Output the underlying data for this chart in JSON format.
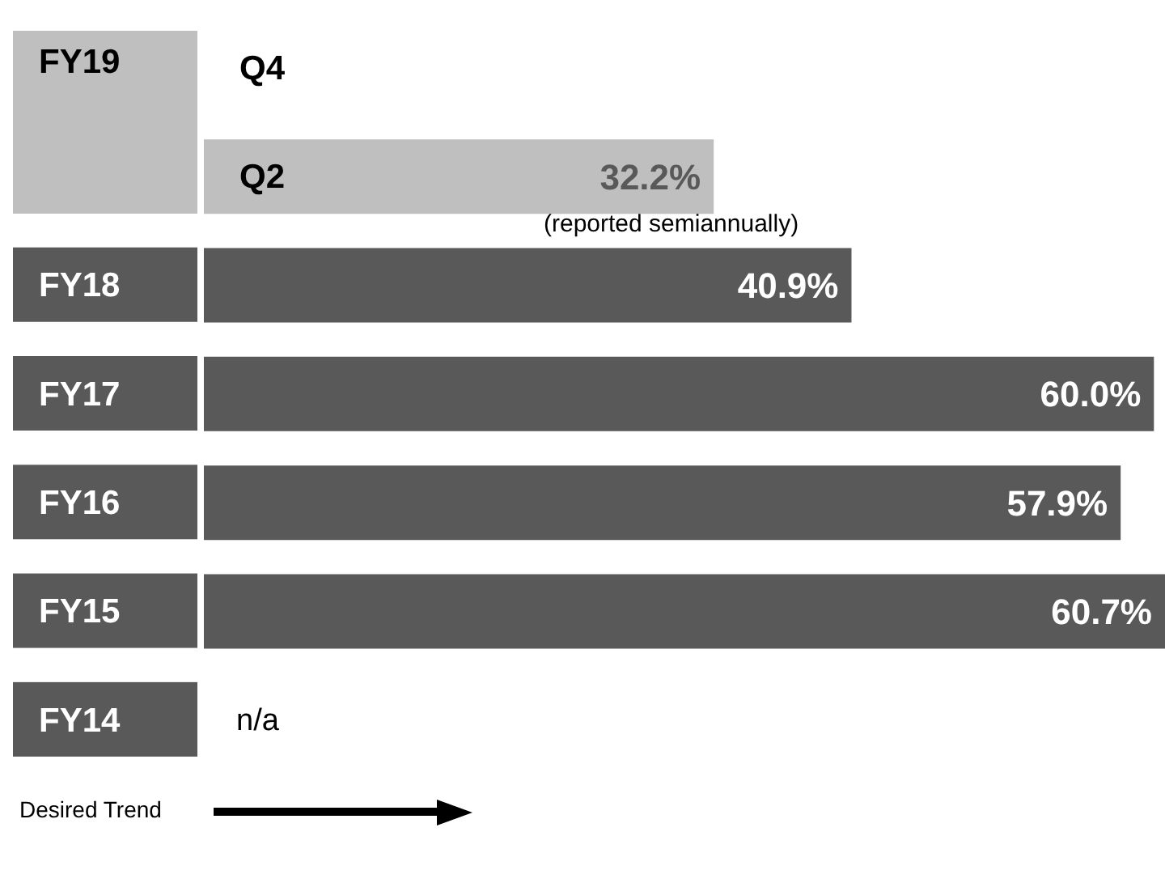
{
  "chart_data": {
    "type": "bar",
    "orientation": "horizontal",
    "categories": [
      "Q4",
      "Q2",
      "FY18",
      "FY17",
      "FY16",
      "FY15",
      "FY14"
    ],
    "values": [
      null,
      32.2,
      40.9,
      60.0,
      57.9,
      60.7,
      null
    ],
    "value_labels": [
      null,
      "32.2%",
      "40.9%",
      "60.0%",
      "57.9%",
      "60.7%",
      "n/a"
    ],
    "colors": [
      "#bfbfbf",
      "#bfbfbf",
      "#595959",
      "#595959",
      "#595959",
      "#595959",
      "#595959"
    ],
    "annotations": [
      "FY19",
      "(reported semiannually)",
      "Desired Trend"
    ]
  }
}
